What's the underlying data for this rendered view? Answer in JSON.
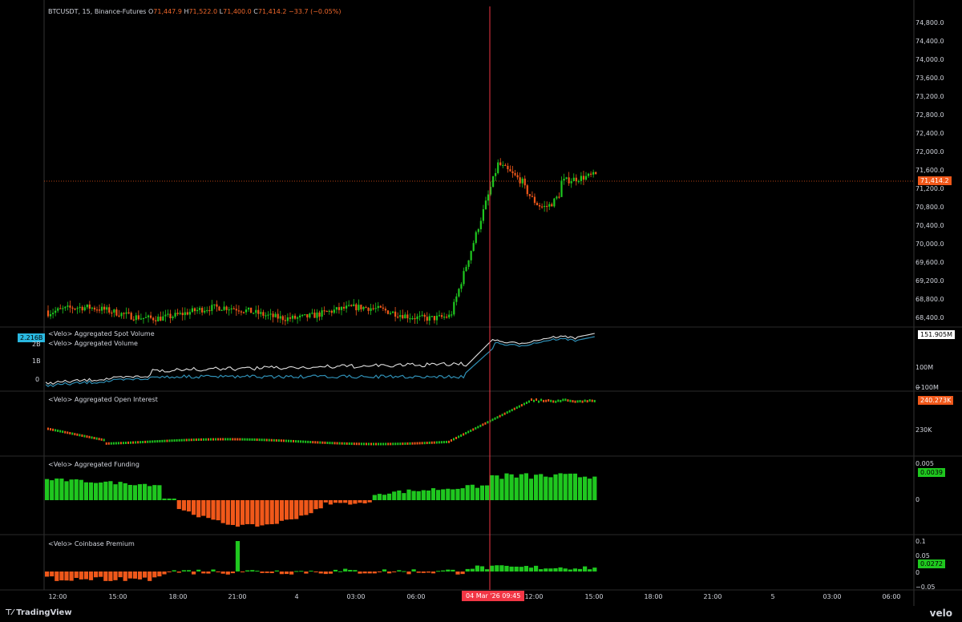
{
  "header": {
    "symbol": "BTCUSDT, 15, Binance-Futures",
    "o_label": "O",
    "o_value": "71,447.9",
    "h_label": "H",
    "h_value": "71,522.0",
    "l_label": "L",
    "l_value": "71,400.0",
    "c_label": "C",
    "c_value": "71,414.2",
    "change": "−33.7 (−0.05%)"
  },
  "price_axis": {
    "ticks": [
      "74,800.0",
      "74,400.0",
      "74,000.0",
      "73,600.0",
      "73,200.0",
      "72,800.0",
      "72,400.0",
      "72,000.0",
      "71,600.0",
      "71,200.0",
      "70,800.0",
      "70,400.0",
      "70,000.0",
      "69,600.0",
      "69,200.0",
      "68,800.0",
      "68,400.0"
    ],
    "last_price_tag": "71,414.2"
  },
  "panes": {
    "volume": {
      "label_spot": "<Velo> Aggregated Spot Volume",
      "label_agg": "<Velo> Aggregated Volume",
      "left_badge": "2.216B",
      "left_ticks": [
        "2B",
        "1B",
        "0"
      ],
      "right_tag": "151.905M",
      "right_ticks": [
        "100M",
        "0",
        "−100M"
      ]
    },
    "oi": {
      "label": "<Velo> Aggregated Open Interest",
      "right_tag": "240.273K",
      "right_ticks": [
        "230K"
      ]
    },
    "funding": {
      "label": "<Velo> Aggregated Funding",
      "right_tag": "0.0039",
      "right_ticks": [
        "0.005",
        "0"
      ]
    },
    "premium": {
      "label": "<Velo> Coinbase Premium",
      "right_tag": "0.0272",
      "right_ticks": [
        "0.1",
        "0.05",
        "0",
        "−0.05"
      ]
    }
  },
  "time_axis": {
    "labels": [
      "12:00",
      "15:00",
      "18:00",
      "21:00",
      "4",
      "03:00",
      "06:00",
      "12:00",
      "15:00",
      "18:00",
      "21:00",
      "5",
      "03:00",
      "06:00"
    ],
    "crosshair_label": "04 Mar '26   09:45"
  },
  "branding": {
    "tradingview": "TradingView",
    "velo": "velo"
  },
  "colors": {
    "up": "#1fc71f",
    "down": "#f0581a",
    "spot_line": "#2f8fb5",
    "agg_line": "#e0e0e0",
    "crosshair": "#f23645"
  }
}
